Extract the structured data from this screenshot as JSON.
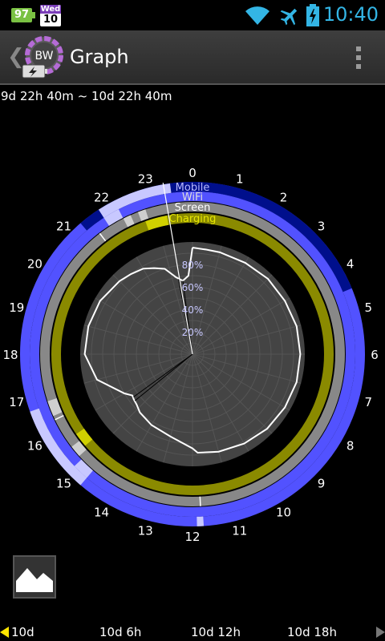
{
  "status_bar": {
    "battery_percent": "97",
    "calendar_day": "Wed",
    "calendar_date": "10",
    "time": "10:40",
    "icons": [
      "wifi-icon",
      "airplane-mode-icon",
      "battery-charging-icon"
    ]
  },
  "action_bar": {
    "back_glyph": "❮",
    "logo_text": "BW",
    "title": "Graph"
  },
  "range_label": "9d 22h 40m ~ 10d 22h 40m",
  "colors": {
    "mobile": "#000f8c",
    "wifi": "#5252ff",
    "wifi_light": "#c8c8ff",
    "screen": "#888888",
    "screen_light": "#cfcfcf",
    "charging": "#8a8a00",
    "charging_bright": "#d0d000",
    "grid": "#3c3c3c"
  },
  "chart_data": {
    "type": "polar",
    "hour_labels": [
      "0",
      "1",
      "2",
      "3",
      "4",
      "5",
      "6",
      "7",
      "8",
      "9",
      "10",
      "11",
      "12",
      "13",
      "14",
      "15",
      "16",
      "17",
      "18",
      "19",
      "20",
      "21",
      "22",
      "23"
    ],
    "ring_labels": {
      "mobile": "Mobile",
      "wifi": "WiFi",
      "screen": "Screen",
      "charging": "Charging"
    },
    "radial_tick_labels": [
      "20%",
      "40%",
      "60%",
      "80%"
    ],
    "radial_ticks": [
      20,
      40,
      60,
      80
    ],
    "rmax": 100,
    "mobile_segments": [
      [
        21.3,
        4.5
      ]
    ],
    "wifi_light_segments": [
      [
        11.75,
        11.9
      ],
      [
        14.7,
        16.7
      ],
      [
        21.8,
        23.5
      ]
    ],
    "wifi_dark_segments": [
      [
        0,
        0.5
      ],
      [
        2.6,
        3.1
      ]
    ],
    "screen_light_segments": [
      [
        16.4,
        16.8
      ],
      [
        22.2,
        22.4
      ],
      [
        22.6,
        22.8
      ],
      [
        15.2,
        15.5
      ]
    ],
    "screen_markers": [
      11.8,
      16.3,
      21.5
    ],
    "charging_bright_segments": [
      [
        22.7,
        23.3
      ],
      [
        15.3,
        15.7
      ]
    ],
    "battery_level": [
      [
        0,
        95
      ],
      [
        0.5,
        94
      ],
      [
        1,
        94
      ],
      [
        2,
        94
      ],
      [
        3,
        95
      ],
      [
        4,
        95
      ],
      [
        5,
        96
      ],
      [
        6,
        96
      ],
      [
        7,
        96
      ],
      [
        8,
        95
      ],
      [
        9,
        94
      ],
      [
        10,
        92
      ],
      [
        11,
        90
      ],
      [
        11.8,
        88
      ],
      [
        12,
        84
      ],
      [
        13,
        76
      ],
      [
        14,
        73
      ],
      [
        14.8,
        70
      ],
      [
        15.2,
        67
      ],
      [
        15.5,
        66
      ],
      [
        15.7,
        65
      ],
      [
        16,
        70
      ],
      [
        17,
        88
      ],
      [
        18,
        96
      ],
      [
        19,
        96
      ],
      [
        20,
        95
      ],
      [
        21,
        92
      ],
      [
        21.5,
        90
      ],
      [
        22,
        88
      ],
      [
        22.4,
        84
      ],
      [
        22.8,
        80
      ],
      [
        23.2,
        70
      ],
      [
        23.5,
        66
      ],
      [
        23.8,
        70
      ]
    ],
    "vertical_pointer_hour": 23.35
  },
  "timeline": {
    "labels": [
      "10d",
      "10d 6h",
      "10d 12h",
      "10d 18h"
    ]
  }
}
